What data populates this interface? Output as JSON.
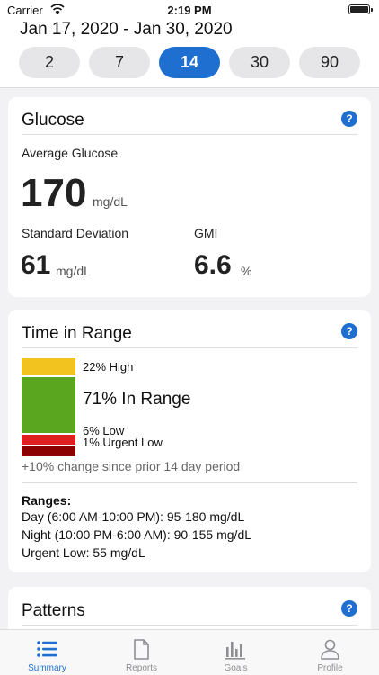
{
  "status_bar": {
    "carrier": "Carrier",
    "time": "2:19 PM"
  },
  "header": {
    "date_range": "Jan 17, 2020 - Jan 30, 2020",
    "periods": [
      "2",
      "7",
      "14",
      "30",
      "90"
    ],
    "selected_period": "14"
  },
  "glucose": {
    "title": "Glucose",
    "help": "?",
    "average_label": "Average Glucose",
    "average_value": "170",
    "average_unit": "mg/dL",
    "sd_label": "Standard Deviation",
    "sd_value": "61",
    "sd_unit": "mg/dL",
    "gmi_label": "GMI",
    "gmi_value": "6.6",
    "gmi_unit": "%"
  },
  "time_in_range": {
    "title": "Time in Range",
    "help": "?",
    "segments": [
      {
        "label": "22% High",
        "percent": 22,
        "color": "#f2c21f"
      },
      {
        "label": "71% In Range",
        "percent": 71,
        "color": "#5aa61f"
      },
      {
        "label": "6% Low",
        "percent": 6,
        "color": "#e02020"
      },
      {
        "label": "1% Urgent Low",
        "percent": 1,
        "color": "#8b0000"
      }
    ],
    "change_text": "+10% change since prior 14 day period",
    "ranges_title": "Ranges:",
    "ranges": [
      "Day (6:00 AM-10:00 PM): 95-180 mg/dL",
      "Night (10:00 PM-6:00 AM): 90-155 mg/dL",
      "Urgent Low: 55 mg/dL"
    ]
  },
  "patterns": {
    "title": "Patterns",
    "help": "?"
  },
  "tabbar": {
    "items": [
      {
        "label": "Summary",
        "icon": "list-icon"
      },
      {
        "label": "Reports",
        "icon": "document-icon"
      },
      {
        "label": "Goals",
        "icon": "bar-chart-icon"
      },
      {
        "label": "Profile",
        "icon": "person-icon"
      }
    ],
    "active": "Summary"
  },
  "colors": {
    "accent": "#1f6fd0"
  }
}
